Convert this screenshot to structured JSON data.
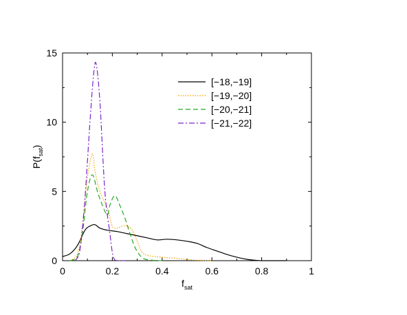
{
  "chart_data": {
    "type": "line",
    "xlabel": "f",
    "xlabel_sub": "sat",
    "ylabel": "P(f",
    "ylabel_sub": "sat",
    "ylabel_close": ")",
    "xlim": [
      0,
      1
    ],
    "ylim": [
      0,
      15
    ],
    "xticks": [
      "0",
      "0.2",
      "0.4",
      "0.6",
      "0.8",
      "1"
    ],
    "yticks": [
      "0",
      "5",
      "10",
      "15"
    ],
    "grid": false,
    "legend_position": "top-right",
    "series": [
      {
        "name": "[−18,−19]",
        "color": "#000000",
        "dash": "solid",
        "x": [
          0,
          0.03,
          0.06,
          0.09,
          0.11,
          0.13,
          0.15,
          0.18,
          0.22,
          0.26,
          0.3,
          0.34,
          0.38,
          0.42,
          0.46,
          0.5,
          0.54,
          0.58,
          0.62,
          0.66,
          0.7,
          0.74,
          0.78,
          0.8,
          0.85,
          0.9
        ],
        "y": [
          0.3,
          0.5,
          1.1,
          2.2,
          2.5,
          2.6,
          2.35,
          2.2,
          2.1,
          1.95,
          1.8,
          1.65,
          1.5,
          1.55,
          1.5,
          1.4,
          1.25,
          0.95,
          0.7,
          0.45,
          0.25,
          0.1,
          0.02,
          0,
          0,
          0
        ]
      },
      {
        "name": "[−19,−20]",
        "color": "#f0a000",
        "dash": "dotted",
        "x": [
          0.03,
          0.06,
          0.08,
          0.1,
          0.12,
          0.13,
          0.15,
          0.18,
          0.2,
          0.22,
          0.24,
          0.26,
          0.28,
          0.3,
          0.32,
          0.35,
          0.4,
          0.45,
          0.5,
          0.55,
          0.6
        ],
        "y": [
          0,
          0.5,
          2.5,
          6.0,
          7.7,
          6.5,
          5.0,
          3.8,
          2.5,
          2.35,
          2.5,
          2.5,
          2.2,
          1.4,
          0.6,
          0.35,
          0.25,
          0.18,
          0.08,
          0.02,
          0
        ]
      },
      {
        "name": "[−20,−21]",
        "color": "#22aa22",
        "dash": "dashed",
        "x": [
          0.03,
          0.06,
          0.08,
          0.1,
          0.12,
          0.14,
          0.16,
          0.18,
          0.19,
          0.21,
          0.23,
          0.25,
          0.27,
          0.29,
          0.31,
          0.33,
          0.36,
          0.4
        ],
        "y": [
          0,
          0.3,
          2.0,
          5.0,
          6.2,
          5.0,
          4.0,
          3.3,
          4.0,
          4.7,
          4.0,
          3.1,
          2.0,
          1.0,
          0.4,
          0.12,
          0.03,
          0
        ]
      },
      {
        "name": "[−21,−22]",
        "color": "#7a22cc",
        "dash": "dashdot",
        "x": [
          0.05,
          0.07,
          0.09,
          0.11,
          0.125,
          0.135,
          0.15,
          0.17,
          0.19,
          0.2,
          0.21,
          0.23,
          0.25
        ],
        "y": [
          0,
          0.8,
          4.5,
          10.0,
          13.5,
          14.2,
          11.5,
          5.0,
          2.0,
          0.6,
          0.05,
          0,
          0
        ]
      }
    ]
  }
}
